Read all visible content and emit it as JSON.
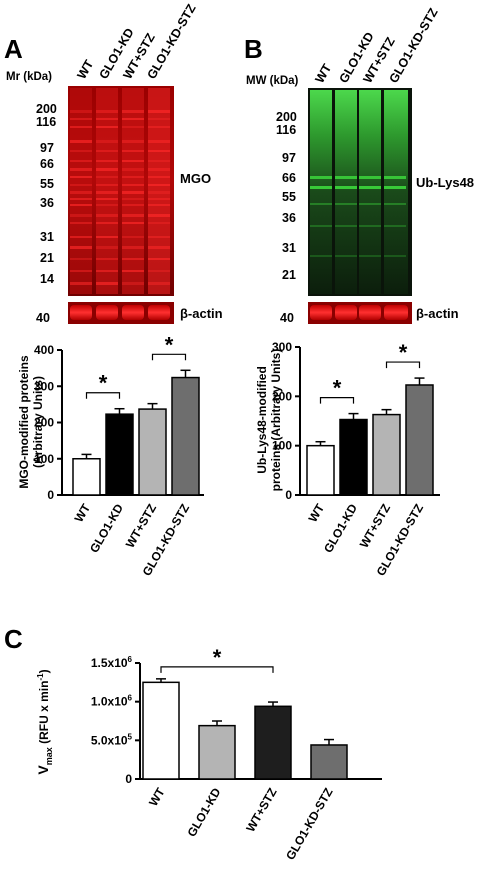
{
  "panels": {
    "a": {
      "letter": "A"
    },
    "b": {
      "letter": "B"
    },
    "c": {
      "letter": "C"
    }
  },
  "blot_a": {
    "mw_title": "Mr (kDa)",
    "lanes": [
      "WT",
      "GLO1-KD",
      "WT+STZ",
      "GLO1-KD-STZ"
    ],
    "markers": [
      "200",
      "116",
      "97",
      "66",
      "55",
      "36",
      "31",
      "21",
      "14"
    ],
    "target_label": "MGO",
    "actin_marker": "40",
    "actin_label": "β-actin",
    "colors": {
      "background": "#8a0000",
      "band": "#ff2a2a",
      "actin": "#e01818"
    }
  },
  "blot_b": {
    "mw_title": "MW (kDa)",
    "lanes": [
      "WT",
      "GLO1-KD",
      "WT+STZ",
      "GLO1-KD-STZ"
    ],
    "markers": [
      "200",
      "116",
      "97",
      "66",
      "55",
      "36",
      "31",
      "21"
    ],
    "target_label": "Ub-Lys48",
    "actin_marker": "40",
    "actin_label": "β-actin",
    "colors": {
      "background": "#0a1a0a",
      "band": "#3cd63c",
      "actin": "#e01818"
    }
  },
  "chart_data": [
    {
      "type": "bar",
      "panel": "A",
      "categories": [
        "WT",
        "GLO1-KD",
        "WT+STZ",
        "GLO1-KD-STZ"
      ],
      "values": [
        100,
        223,
        237,
        324
      ],
      "errors": [
        12,
        15,
        15,
        20
      ],
      "colors": [
        "#ffffff",
        "#000000",
        "#b4b4b4",
        "#6e6e6e"
      ],
      "ylabel": "MGO-modified proteins (Arbitrary Units)",
      "ylim": [
        0,
        400
      ],
      "yticks": [
        "0",
        "100",
        "200",
        "300",
        "400"
      ],
      "significance": [
        {
          "between": [
            "WT",
            "GLO1-KD"
          ],
          "label": "*"
        },
        {
          "between": [
            "WT+STZ",
            "GLO1-KD-STZ"
          ],
          "label": "*"
        }
      ]
    },
    {
      "type": "bar",
      "panel": "B",
      "categories": [
        "WT",
        "GLO1-KD",
        "WT+STZ",
        "GLO1-KD-STZ"
      ],
      "values": [
        100,
        153,
        163,
        223
      ],
      "errors": [
        8,
        12,
        10,
        14
      ],
      "colors": [
        "#ffffff",
        "#000000",
        "#b4b4b4",
        "#6e6e6e"
      ],
      "ylabel": "Ub-Lys48-modified proteins (Arbitrary Units)",
      "ylim": [
        0,
        300
      ],
      "yticks": [
        "0",
        "100",
        "200",
        "300"
      ],
      "significance": [
        {
          "between": [
            "WT",
            "GLO1-KD"
          ],
          "label": "*"
        },
        {
          "between": [
            "WT+STZ",
            "GLO1-KD-STZ"
          ],
          "label": "*"
        }
      ]
    },
    {
      "type": "bar",
      "panel": "C",
      "categories": [
        "WT",
        "GLO1-KD",
        "WT+STZ",
        "GLO1-KD-STZ"
      ],
      "values": [
        1250000,
        690000,
        940000,
        440000
      ],
      "errors": [
        45000,
        60000,
        55000,
        70000
      ],
      "colors": [
        "#ffffff",
        "#b4b4b4",
        "#1e1e1e",
        "#6e6e6e"
      ],
      "ylabel": {
        "main": "V",
        "sub": "max",
        "unit": " (RFU x min",
        "unit_sup": "-1",
        "close": ")"
      },
      "ylim": [
        0,
        1500000
      ],
      "yticks": [
        {
          "value": 0,
          "label": "0"
        },
        {
          "value": 500000,
          "mantissa": "5.0x10",
          "exp": "5"
        },
        {
          "value": 1000000,
          "mantissa": "1.0x10",
          "exp": "6"
        },
        {
          "value": 1500000,
          "mantissa": "1.5x10",
          "exp": "6"
        }
      ],
      "significance": [
        {
          "between": [
            "WT",
            "WT+STZ"
          ],
          "label": "*"
        }
      ]
    }
  ]
}
